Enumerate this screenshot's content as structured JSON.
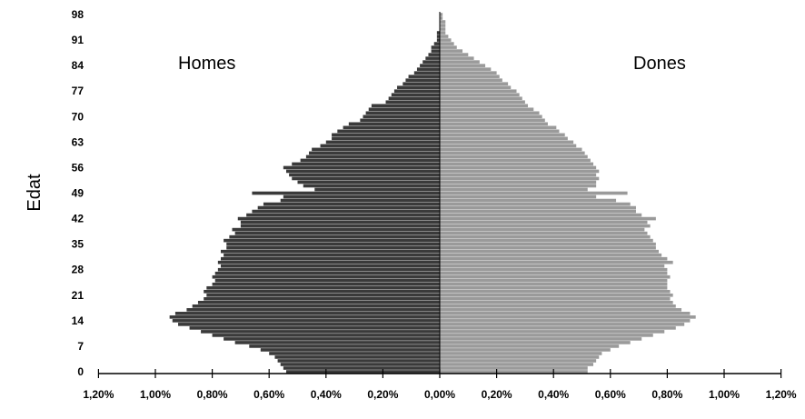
{
  "chart_data": {
    "type": "bar",
    "orientation": "horizontal-population-pyramid",
    "title": "",
    "xlabel": "",
    "ylabel": "Edat",
    "side_labels": {
      "left": "Homes",
      "right": "Dones"
    },
    "xlim": [
      -1.2,
      1.2
    ],
    "ylim": [
      0,
      98
    ],
    "x_ticks": [
      "1,20%",
      "1,00%",
      "0,80%",
      "0,60%",
      "0,40%",
      "0,20%",
      "0,00%",
      "0,20%",
      "0,40%",
      "0,60%",
      "0,80%",
      "1,00%",
      "1,20%"
    ],
    "y_ticks": [
      "0",
      "7",
      "14",
      "21",
      "28",
      "35",
      "42",
      "49",
      "56",
      "63",
      "70",
      "77",
      "84",
      "91",
      "98"
    ],
    "grid": false,
    "legend": "none",
    "colors": {
      "homes": "#3a3a3a",
      "dones": "#9a9a9a"
    },
    "ages": [
      0,
      1,
      2,
      3,
      4,
      5,
      6,
      7,
      8,
      9,
      10,
      11,
      12,
      13,
      14,
      15,
      16,
      17,
      18,
      19,
      20,
      21,
      22,
      23,
      24,
      25,
      26,
      27,
      28,
      29,
      30,
      31,
      32,
      33,
      34,
      35,
      36,
      37,
      38,
      39,
      40,
      41,
      42,
      43,
      44,
      45,
      46,
      47,
      48,
      49,
      50,
      51,
      52,
      53,
      54,
      55,
      56,
      57,
      58,
      59,
      60,
      61,
      62,
      63,
      64,
      65,
      66,
      67,
      68,
      69,
      70,
      71,
      72,
      73,
      74,
      75,
      76,
      77,
      78,
      79,
      80,
      81,
      82,
      83,
      84,
      85,
      86,
      87,
      88,
      89,
      90,
      91,
      92,
      93,
      94,
      95,
      96,
      97,
      98
    ],
    "series": [
      {
        "name": "Homes",
        "values": [
          0.54,
          0.55,
          0.56,
          0.57,
          0.58,
          0.6,
          0.63,
          0.67,
          0.72,
          0.76,
          0.8,
          0.84,
          0.88,
          0.92,
          0.94,
          0.95,
          0.93,
          0.89,
          0.87,
          0.85,
          0.83,
          0.82,
          0.83,
          0.82,
          0.8,
          0.79,
          0.8,
          0.79,
          0.78,
          0.77,
          0.78,
          0.77,
          0.76,
          0.77,
          0.75,
          0.75,
          0.76,
          0.74,
          0.72,
          0.73,
          0.7,
          0.7,
          0.71,
          0.68,
          0.66,
          0.64,
          0.62,
          0.56,
          0.55,
          0.66,
          0.44,
          0.48,
          0.5,
          0.52,
          0.53,
          0.54,
          0.55,
          0.52,
          0.49,
          0.47,
          0.46,
          0.45,
          0.42,
          0.4,
          0.38,
          0.38,
          0.36,
          0.34,
          0.32,
          0.28,
          0.27,
          0.26,
          0.25,
          0.24,
          0.19,
          0.18,
          0.17,
          0.16,
          0.15,
          0.13,
          0.12,
          0.11,
          0.09,
          0.08,
          0.07,
          0.06,
          0.05,
          0.04,
          0.03,
          0.03,
          0.02,
          0.01,
          0.01,
          0.01,
          0.0,
          0.0,
          0.0,
          0.0,
          0.0
        ]
      },
      {
        "name": "Dones",
        "values": [
          0.52,
          0.52,
          0.54,
          0.55,
          0.56,
          0.57,
          0.6,
          0.63,
          0.67,
          0.71,
          0.75,
          0.79,
          0.83,
          0.86,
          0.88,
          0.9,
          0.88,
          0.85,
          0.83,
          0.82,
          0.81,
          0.82,
          0.81,
          0.8,
          0.8,
          0.8,
          0.81,
          0.8,
          0.8,
          0.79,
          0.82,
          0.8,
          0.78,
          0.77,
          0.76,
          0.76,
          0.75,
          0.74,
          0.73,
          0.72,
          0.74,
          0.73,
          0.76,
          0.71,
          0.69,
          0.69,
          0.67,
          0.62,
          0.55,
          0.66,
          0.52,
          0.55,
          0.55,
          0.56,
          0.55,
          0.56,
          0.55,
          0.54,
          0.53,
          0.52,
          0.51,
          0.5,
          0.48,
          0.47,
          0.45,
          0.44,
          0.42,
          0.41,
          0.38,
          0.37,
          0.36,
          0.35,
          0.33,
          0.31,
          0.3,
          0.29,
          0.28,
          0.27,
          0.25,
          0.24,
          0.22,
          0.21,
          0.2,
          0.18,
          0.16,
          0.14,
          0.12,
          0.1,
          0.08,
          0.06,
          0.05,
          0.04,
          0.03,
          0.02,
          0.02,
          0.02,
          0.02,
          0.01,
          0.01
        ]
      }
    ]
  }
}
